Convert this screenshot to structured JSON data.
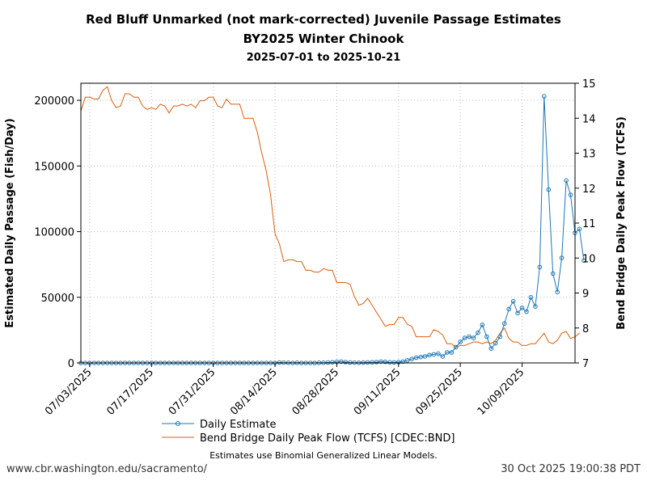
{
  "chart_data": {
    "type": "line",
    "title": "Red Bluff Unmarked (not mark-corrected) Juvenile Passage Estimates",
    "subtitle": "BY2025 Winter Chinook",
    "date_range": "2025-07-01 to 2025-10-21",
    "ylabel_left": "Estimated Daily Passage (Fish/Day)",
    "ylabel_right": "Bend Bridge Daily Peak Flow (TCFS)",
    "ylim_left": [
      0,
      213000
    ],
    "ylim_right": [
      7,
      15
    ],
    "xlim_day_index": [
      0,
      112
    ],
    "x_ticks": [
      {
        "day": 2,
        "label": "07/03/2025"
      },
      {
        "day": 16,
        "label": "07/17/2025"
      },
      {
        "day": 30,
        "label": "07/31/2025"
      },
      {
        "day": 44,
        "label": "08/14/2025"
      },
      {
        "day": 58,
        "label": "08/28/2025"
      },
      {
        "day": 72,
        "label": "09/11/2025"
      },
      {
        "day": 86,
        "label": "09/25/2025"
      },
      {
        "day": 100,
        "label": "10/09/2025"
      }
    ],
    "y_ticks_left": [
      {
        "value": 0,
        "label": "0"
      },
      {
        "value": 50000,
        "label": "50000"
      },
      {
        "value": 100000,
        "label": "100000"
      },
      {
        "value": 150000,
        "label": "150000"
      },
      {
        "value": 200000,
        "label": "200000"
      }
    ],
    "y_ticks_right": [
      {
        "value": 7,
        "label": "7"
      },
      {
        "value": 8,
        "label": "8"
      },
      {
        "value": 9,
        "label": "9"
      },
      {
        "value": 10,
        "label": "10"
      },
      {
        "value": 11,
        "label": "11"
      },
      {
        "value": 12,
        "label": "12"
      },
      {
        "value": 13,
        "label": "13"
      },
      {
        "value": 14,
        "label": "14"
      },
      {
        "value": 15,
        "label": "15"
      }
    ],
    "series": [
      {
        "name": "Daily Estimate",
        "axis": "left",
        "color": "#1f77b4",
        "start_day": 0,
        "values": [
          0,
          0,
          0,
          0,
          0,
          0,
          0,
          0,
          0,
          0,
          0,
          0,
          0,
          0,
          0,
          0,
          0,
          0,
          0,
          0,
          0,
          0,
          0,
          0,
          0,
          0,
          0,
          0,
          0,
          0,
          0,
          0,
          0,
          0,
          0,
          0,
          0,
          0,
          0,
          0,
          0,
          0,
          0,
          0,
          0,
          300,
          200,
          100,
          0,
          100,
          0,
          0,
          0,
          0,
          100,
          200,
          300,
          500,
          800,
          1000,
          600,
          300,
          200,
          100,
          300,
          400,
          500,
          600,
          1000,
          800,
          500,
          400,
          600,
          1000,
          2000,
          3000,
          4000,
          4500,
          5000,
          6000,
          6500,
          7000,
          5000,
          8000,
          8000,
          12000,
          16000,
          19000,
          20000,
          19000,
          23000,
          29000,
          20000,
          11000,
          15000,
          20000,
          30000,
          41000,
          47000,
          38000,
          42000,
          39000,
          50000,
          43000,
          73000,
          203000,
          132000,
          68000,
          54000,
          80000,
          139000,
          128000,
          99000,
          102000,
          78000
        ]
      },
      {
        "name": "Bend Bridge Daily Peak Flow (TCFS) [CDEC:BND]",
        "axis": "right",
        "color": "#d95f0e",
        "start_day": 0,
        "values": [
          14.2,
          14.6,
          14.6,
          14.55,
          14.55,
          14.8,
          14.9,
          14.5,
          14.3,
          14.35,
          14.7,
          14.7,
          14.6,
          14.6,
          14.35,
          14.25,
          14.3,
          14.25,
          14.4,
          14.35,
          14.15,
          14.35,
          14.35,
          14.4,
          14.35,
          14.4,
          14.3,
          14.5,
          14.5,
          14.6,
          14.6,
          14.35,
          14.3,
          14.55,
          14.4,
          14.4,
          14.4,
          14.0,
          14.0,
          14.0,
          13.6,
          13.0,
          12.5,
          11.8,
          10.7,
          10.4,
          9.9,
          9.95,
          9.95,
          9.9,
          9.9,
          9.65,
          9.65,
          9.6,
          9.6,
          9.7,
          9.65,
          9.65,
          9.3,
          9.3,
          9.3,
          9.25,
          8.9,
          8.65,
          8.7,
          8.85,
          8.65,
          8.45,
          8.25,
          8.05,
          8.1,
          8.1,
          8.3,
          8.3,
          8.1,
          8.05,
          7.75,
          7.75,
          7.75,
          7.75,
          7.95,
          7.9,
          7.8,
          7.55,
          7.55,
          7.45,
          7.5,
          7.5,
          7.55,
          7.6,
          7.6,
          7.55,
          7.6,
          7.55,
          7.65,
          7.85,
          8.0,
          7.7,
          7.6,
          7.6,
          7.5,
          7.5,
          7.55,
          7.55,
          7.7,
          7.85,
          7.6,
          7.55,
          7.65,
          7.85,
          7.9,
          7.7,
          7.75,
          7.85
        ]
      }
    ],
    "legend": {
      "position": "bottom-center"
    },
    "grid": true
  },
  "footer": {
    "note": "Estimates use Binomial Generalized Linear Models.",
    "url": "www.cbr.washington.edu/sacramento/",
    "timestamp": "30 Oct 2025 19:00:38 PDT"
  }
}
